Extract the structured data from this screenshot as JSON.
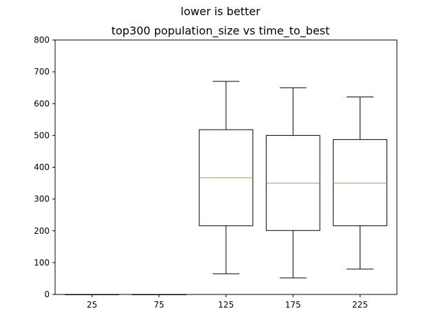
{
  "figure": {
    "suptitle": "lower is better"
  },
  "chart_data": {
    "type": "box",
    "title": "top300 population_size vs time_to_best",
    "xlabel": "",
    "ylabel": "",
    "categories": [
      "25",
      "75",
      "125",
      "175",
      "225"
    ],
    "ylim": [
      0,
      800
    ],
    "yticks": [
      0,
      100,
      200,
      300,
      400,
      500,
      600,
      700,
      800
    ],
    "grid": false,
    "box_color": "#000000",
    "median_color": "#ff7f0e",
    "boxes": [
      {
        "category": "25",
        "whisker_low": 0,
        "q1": 0,
        "median": 0,
        "q3": 0,
        "whisker_high": 0
      },
      {
        "category": "75",
        "whisker_low": 0,
        "q1": 0,
        "median": 0,
        "q3": 0,
        "whisker_high": 0
      },
      {
        "category": "125",
        "whisker_low": 65,
        "q1": 216,
        "median": 367,
        "q3": 518,
        "whisker_high": 670
      },
      {
        "category": "175",
        "whisker_low": 52,
        "q1": 201,
        "median": 350,
        "q3": 500,
        "whisker_high": 650
      },
      {
        "category": "225",
        "whisker_low": 80,
        "q1": 216,
        "median": 350,
        "q3": 487,
        "whisker_high": 621
      }
    ]
  }
}
